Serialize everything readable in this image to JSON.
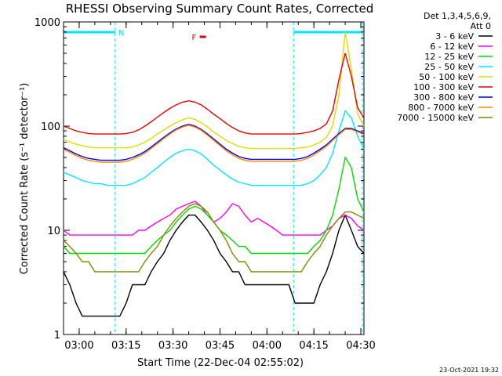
{
  "chart_data": {
    "type": "line",
    "title": "RHESSI Observing Summary Count Rates, Corrected",
    "xlabel": "Start Time (22-Dec-04 02:55:02)",
    "ylabel": "Corrected Count Rate (s⁻¹ detector⁻¹)",
    "yscale": "log",
    "ylim": [
      1,
      1000
    ],
    "xlim_minutes_after_start": [
      0,
      36.5
    ],
    "x_unit": "minutes after 02:55:02",
    "x_tick_labels": [
      "03:00",
      "03:15",
      "03:30",
      "03:45",
      "04:00",
      "04:15",
      "04:30"
    ],
    "x_tick_minutes": [
      5,
      20,
      35,
      50,
      65,
      80,
      95
    ],
    "y_tick_labels": [
      "1",
      "10",
      "100",
      "1000"
    ],
    "y_tick_values": [
      1,
      10,
      100,
      1000
    ],
    "legend_header": [
      "Det 1,3,4,5,6,9,",
      "Att 0"
    ],
    "legend_position": "right",
    "flags": [
      {
        "label": "N",
        "color": "#00e5ff",
        "start_minute": 0,
        "end_minute": 16.5
      },
      {
        "label": "",
        "color": "#00e5ff",
        "start_minute": 73.5,
        "end_minute": 95.5
      },
      {
        "label": "F",
        "color": "#e00000",
        "start_minute": 43.5,
        "end_minute": 45.5
      }
    ],
    "series": [
      {
        "name": "3 - 6 keV",
        "color": "#000000",
        "x": [
          0,
          2,
          4,
          6,
          8,
          10,
          12,
          14,
          16,
          18,
          20,
          22,
          24,
          26,
          28,
          30,
          32,
          34,
          36,
          38,
          40,
          42,
          44,
          46,
          48,
          50,
          52,
          54,
          56,
          58,
          60,
          62,
          64,
          66,
          68,
          70,
          72,
          74,
          76,
          78,
          80,
          82,
          84,
          86,
          88,
          90,
          92,
          94,
          96
        ],
        "y": [
          4,
          3,
          2,
          1.5,
          1.5,
          1.5,
          1.5,
          1.5,
          1.5,
          1.5,
          2,
          3,
          3,
          3,
          4,
          5,
          6,
          8,
          10,
          12,
          14,
          14,
          12,
          10,
          8,
          6,
          5,
          4,
          4,
          3,
          3,
          3,
          3,
          3,
          3,
          3,
          3,
          2,
          2,
          2,
          2,
          3,
          4,
          6,
          10,
          14,
          10,
          7,
          6
        ]
      },
      {
        "name": "6 - 12 keV",
        "color": "#ff00ff",
        "x": [
          0,
          2,
          4,
          6,
          8,
          10,
          12,
          14,
          16,
          18,
          20,
          22,
          24,
          26,
          28,
          30,
          32,
          34,
          36,
          38,
          40,
          42,
          44,
          46,
          48,
          50,
          52,
          54,
          56,
          58,
          60,
          62,
          64,
          66,
          68,
          70,
          72,
          74,
          76,
          78,
          80,
          82,
          84,
          86,
          88,
          90,
          92,
          94,
          96
        ],
        "y": [
          10,
          9,
          9,
          9,
          9,
          9,
          9,
          9,
          9,
          9,
          9,
          9,
          10,
          10,
          11,
          12,
          13,
          14,
          16,
          17,
          18,
          19,
          17,
          14,
          12,
          13,
          15,
          18,
          17,
          14,
          12,
          13,
          12,
          11,
          10,
          9,
          9,
          9,
          9,
          9,
          9,
          9,
          10,
          11,
          13,
          14,
          13,
          11,
          10
        ]
      },
      {
        "name": "12 - 25 keV",
        "color": "#00dd00",
        "x": [
          0,
          2,
          4,
          6,
          8,
          10,
          12,
          14,
          16,
          18,
          20,
          22,
          24,
          26,
          28,
          30,
          32,
          34,
          36,
          38,
          40,
          42,
          44,
          46,
          48,
          50,
          52,
          54,
          56,
          58,
          60,
          62,
          64,
          66,
          68,
          70,
          72,
          74,
          76,
          78,
          80,
          82,
          84,
          86,
          88,
          90,
          92,
          94,
          96
        ],
        "y": [
          7,
          6,
          6,
          6,
          6,
          6,
          6,
          6,
          6,
          6,
          6,
          6,
          6,
          6,
          7,
          8,
          9,
          10,
          12,
          14,
          16,
          17,
          16,
          14,
          12,
          10,
          9,
          8,
          7,
          7,
          6,
          6,
          6,
          6,
          6,
          6,
          6,
          6,
          6,
          6,
          7,
          8,
          10,
          14,
          25,
          50,
          40,
          20,
          15
        ]
      },
      {
        "name": "25 - 50 keV",
        "color": "#00e5ff",
        "x": [
          0,
          2,
          4,
          6,
          8,
          10,
          12,
          14,
          16,
          18,
          20,
          22,
          24,
          26,
          28,
          30,
          32,
          34,
          36,
          38,
          40,
          42,
          44,
          46,
          48,
          50,
          52,
          54,
          56,
          58,
          60,
          62,
          64,
          66,
          68,
          70,
          72,
          74,
          76,
          78,
          80,
          82,
          84,
          86,
          88,
          90,
          92,
          94,
          96
        ],
        "y": [
          36,
          34,
          32,
          30,
          29,
          28,
          28,
          27,
          27,
          27,
          27,
          28,
          30,
          32,
          36,
          40,
          45,
          50,
          55,
          58,
          60,
          58,
          54,
          48,
          42,
          38,
          34,
          31,
          29,
          28,
          27,
          27,
          27,
          27,
          27,
          27,
          27,
          27,
          27,
          28,
          30,
          34,
          40,
          55,
          90,
          140,
          120,
          80,
          60
        ]
      },
      {
        "name": "50 - 100 keV",
        "color": "#dddd00",
        "x": [
          0,
          2,
          4,
          6,
          8,
          10,
          12,
          14,
          16,
          18,
          20,
          22,
          24,
          26,
          28,
          30,
          32,
          34,
          36,
          38,
          40,
          42,
          44,
          46,
          48,
          50,
          52,
          54,
          56,
          58,
          60,
          62,
          64,
          66,
          68,
          70,
          72,
          74,
          76,
          78,
          80,
          82,
          84,
          86,
          88,
          90,
          92,
          94,
          96
        ],
        "y": [
          75,
          70,
          67,
          65,
          63,
          62,
          62,
          62,
          62,
          62,
          62,
          63,
          66,
          70,
          76,
          84,
          92,
          100,
          108,
          115,
          120,
          116,
          108,
          98,
          88,
          80,
          73,
          68,
          64,
          62,
          61,
          61,
          61,
          61,
          61,
          61,
          61,
          61,
          62,
          63,
          66,
          70,
          78,
          100,
          200,
          800,
          350,
          130,
          100
        ]
      },
      {
        "name": "100 - 300 keV",
        "color": "#ee0000",
        "x": [
          0,
          2,
          4,
          6,
          8,
          10,
          12,
          14,
          16,
          18,
          20,
          22,
          24,
          26,
          28,
          30,
          32,
          34,
          36,
          38,
          40,
          42,
          44,
          46,
          48,
          50,
          52,
          54,
          56,
          58,
          60,
          62,
          64,
          66,
          68,
          70,
          72,
          74,
          76,
          78,
          80,
          82,
          84,
          86,
          88,
          90,
          92,
          94,
          96
        ],
        "y": [
          100,
          95,
          90,
          87,
          85,
          84,
          84,
          84,
          84,
          84,
          85,
          87,
          92,
          100,
          110,
          122,
          135,
          148,
          160,
          170,
          175,
          170,
          160,
          145,
          130,
          118,
          106,
          97,
          90,
          86,
          84,
          84,
          84,
          84,
          84,
          84,
          84,
          84,
          85,
          87,
          90,
          95,
          105,
          140,
          280,
          500,
          300,
          150,
          120
        ]
      },
      {
        "name": "300 - 800 keV",
        "color": "#0000ee",
        "x": [
          0,
          2,
          4,
          6,
          8,
          10,
          12,
          14,
          16,
          18,
          20,
          22,
          24,
          26,
          28,
          30,
          32,
          34,
          36,
          38,
          40,
          42,
          44,
          46,
          48,
          50,
          52,
          54,
          56,
          58,
          60,
          62,
          64,
          66,
          68,
          70,
          72,
          74,
          76,
          78,
          80,
          82,
          84,
          86,
          88,
          90,
          92,
          94,
          96
        ],
        "y": [
          62,
          58,
          54,
          51,
          49,
          48,
          47,
          47,
          47,
          47,
          48,
          50,
          53,
          57,
          63,
          70,
          78,
          86,
          94,
          100,
          104,
          100,
          93,
          84,
          75,
          67,
          60,
          55,
          51,
          49,
          48,
          48,
          48,
          48,
          48,
          48,
          48,
          48,
          49,
          51,
          55,
          60,
          66,
          75,
          85,
          95,
          95,
          90,
          85
        ]
      },
      {
        "name": "800 - 7000 keV",
        "color": "#ff8800",
        "x": [
          0,
          2,
          4,
          6,
          8,
          10,
          12,
          14,
          16,
          18,
          20,
          22,
          24,
          26,
          28,
          30,
          32,
          34,
          36,
          38,
          40,
          42,
          44,
          46,
          48,
          50,
          52,
          54,
          56,
          58,
          60,
          62,
          64,
          66,
          68,
          70,
          72,
          74,
          76,
          78,
          80,
          82,
          84,
          86,
          88,
          90,
          92,
          94,
          96
        ],
        "y": [
          60,
          56,
          52,
          49,
          47,
          46,
          45,
          45,
          45,
          45,
          46,
          48,
          51,
          55,
          61,
          68,
          76,
          84,
          92,
          98,
          102,
          98,
          91,
          82,
          73,
          65,
          58,
          53,
          49,
          47,
          46,
          46,
          46,
          46,
          46,
          46,
          46,
          46,
          47,
          49,
          53,
          58,
          64,
          73,
          83,
          93,
          93,
          88,
          83
        ]
      },
      {
        "name": "7000 - 15000 keV",
        "color": "#888800",
        "x": [
          0,
          2,
          4,
          6,
          8,
          10,
          12,
          14,
          16,
          18,
          20,
          22,
          24,
          26,
          28,
          30,
          32,
          34,
          36,
          38,
          40,
          42,
          44,
          46,
          48,
          50,
          52,
          54,
          56,
          58,
          60,
          62,
          64,
          66,
          68,
          70,
          72,
          74,
          76,
          78,
          80,
          82,
          84,
          86,
          88,
          90,
          92,
          94,
          96
        ],
        "y": [
          8,
          7,
          6,
          5,
          5,
          4,
          4,
          4,
          4,
          4,
          4,
          4,
          4,
          5,
          6,
          7,
          9,
          11,
          13,
          15,
          17,
          18,
          17,
          15,
          12,
          10,
          8,
          6,
          5,
          5,
          4,
          4,
          4,
          4,
          4,
          4,
          4,
          4,
          4,
          5,
          6,
          7,
          9,
          11,
          13,
          15,
          15,
          14,
          13
        ]
      }
    ]
  },
  "footer": {
    "timestamp": "23-Oct-2021 19:32"
  }
}
